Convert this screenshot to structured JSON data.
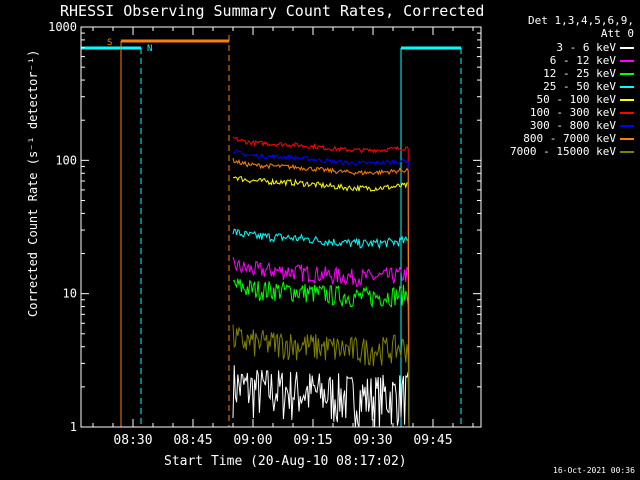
{
  "chart_data": {
    "type": "line",
    "title": "RHESSI Observing Summary Count Rates, Corrected",
    "xlabel": "Start Time (20-Aug-10 08:17:02)",
    "ylabel": "Corrected Count Rate (s⁻¹ detector⁻¹)",
    "yscale": "log",
    "ylim": [
      1,
      1000
    ],
    "xlim": [
      "08:17",
      "09:57"
    ],
    "x_ticks": [
      "08:30",
      "08:45",
      "09:00",
      "09:15",
      "09:30",
      "09:45"
    ],
    "y_ticks": [
      "1",
      "10",
      "100",
      "1000"
    ],
    "legend_header": [
      "Det 1,3,4,5,6,9,",
      "Att 0"
    ],
    "legend_placement": "right",
    "flag_labels": [
      {
        "label": "S",
        "color": "#ff7f00"
      },
      {
        "label": "N",
        "color": "#00ffff"
      }
    ],
    "series": [
      {
        "name": "3 - 6 keV",
        "color": "#ffffff",
        "level": 1.8,
        "noise": 0.45
      },
      {
        "name": "6 - 12 keV",
        "color": "#ff00ff",
        "level": 14,
        "noise": 0.15
      },
      {
        "name": "12 - 25 keV",
        "color": "#00ff00",
        "level": 10,
        "noise": 0.18
      },
      {
        "name": "25 - 50 keV",
        "color": "#00ffff",
        "level": 25,
        "noise": 0.08
      },
      {
        "name": "50 - 100 keV",
        "color": "#ffff00",
        "level": 65,
        "noise": 0.05
      },
      {
        "name": "100 - 300 keV",
        "color": "#ff0000",
        "level": 125,
        "noise": 0.04
      },
      {
        "name": "300 - 800 keV",
        "color": "#0000ff",
        "level": 100,
        "noise": 0.04
      },
      {
        "name": "800 - 7000 keV",
        "color": "#ff7f00",
        "level": 85,
        "noise": 0.04
      },
      {
        "name": "7000 - 15000 keV",
        "color": "#808000",
        "level": 4,
        "noise": 0.25
      }
    ],
    "data_interval": {
      "start": "08:55",
      "end": "09:39"
    },
    "night_intervals": [
      [
        "08:17",
        "08:32"
      ],
      [
        "09:37",
        "09:52"
      ]
    ],
    "saa_interval": [
      "08:27",
      "08:54"
    ]
  },
  "timestamp": "16-Oct-2021 00:36"
}
